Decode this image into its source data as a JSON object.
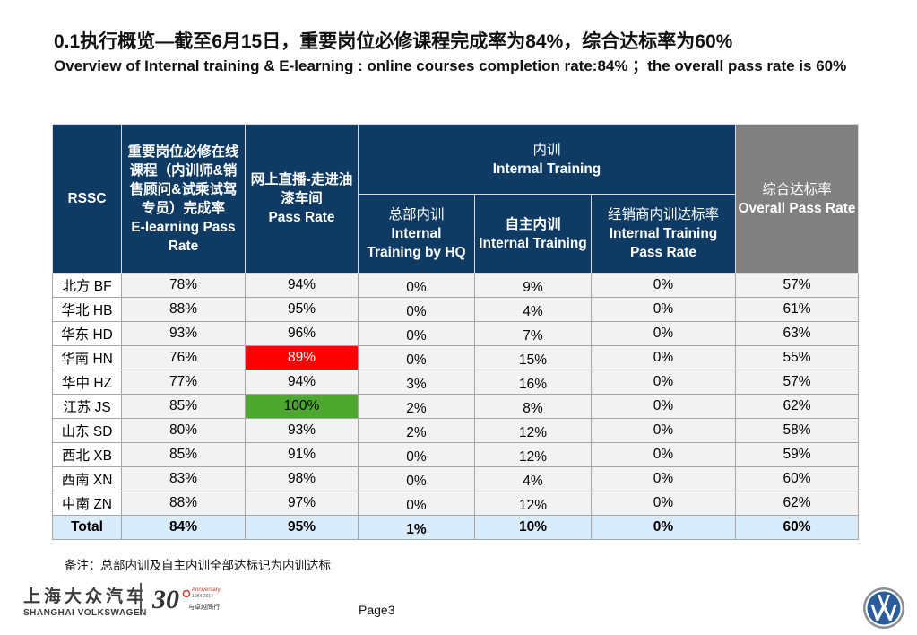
{
  "title": {
    "cn": "0.1执行概览—截至6月15日，重要岗位必修课程完成率为84%，综合达标率为60%",
    "en": "Overview of Internal training & E-learning : online courses completion rate:84% ；the overall pass rate is 60%"
  },
  "table": {
    "headers": {
      "rssc": "RSSC",
      "elearning_cn": "重要岗位必修在线课程（内训师&销售顾问&试乘试驾专员）完成率",
      "elearning_en": "E-learning Pass Rate",
      "live_cn": "网上直播-走进油漆车间",
      "live_en": "Pass Rate",
      "internal_cn": "内训",
      "internal_en": "Internal Training",
      "hq_cn": "总部内训",
      "hq_en": "Internal Training by HQ",
      "self_cn": "自主内训",
      "self_en": "Internal Training",
      "dealer_cn": "经销商内训达标率",
      "dealer_en": "Internal Training Pass Rate",
      "overall_cn": "综合达标率",
      "overall_en": "Overall Pass Rate"
    },
    "rows": [
      {
        "region": "北方 BF",
        "elearning": "78%",
        "live": "94%",
        "hq": "0%",
        "self": "9%",
        "dealer": "0%",
        "overall": "57%"
      },
      {
        "region": "华北 HB",
        "elearning": "88%",
        "live": "95%",
        "hq": "0%",
        "self": "4%",
        "dealer": "0%",
        "overall": "61%"
      },
      {
        "region": "华东 HD",
        "elearning": "93%",
        "live": "96%",
        "hq": "0%",
        "self": "7%",
        "dealer": "0%",
        "overall": "63%"
      },
      {
        "region": "华南 HN",
        "elearning": "76%",
        "live": "89%",
        "hq": "0%",
        "self": "15%",
        "dealer": "0%",
        "overall": "55%"
      },
      {
        "region": "华中 HZ",
        "elearning": "77%",
        "live": "94%",
        "hq": "3%",
        "self": "16%",
        "dealer": "0%",
        "overall": "57%"
      },
      {
        "region": "江苏 JS",
        "elearning": "85%",
        "live": "100%",
        "hq": "2%",
        "self": "8%",
        "dealer": "0%",
        "overall": "62%"
      },
      {
        "region": "山东 SD",
        "elearning": "80%",
        "live": "93%",
        "hq": "2%",
        "self": "12%",
        "dealer": "0%",
        "overall": "58%"
      },
      {
        "region": "西北 XB",
        "elearning": "85%",
        "live": "91%",
        "hq": "0%",
        "self": "12%",
        "dealer": "0%",
        "overall": "59%"
      },
      {
        "region": "西南 XN",
        "elearning": "83%",
        "live": "98%",
        "hq": "0%",
        "self": "4%",
        "dealer": "0%",
        "overall": "60%"
      },
      {
        "region": "中南 ZN",
        "elearning": "88%",
        "live": "97%",
        "hq": "0%",
        "self": "12%",
        "dealer": "0%",
        "overall": "62%"
      }
    ],
    "total": {
      "region": "Total",
      "elearning": "84%",
      "live": "95%",
      "hq": "1%",
      "self": "10%",
      "dealer": "0%",
      "overall": "60%"
    },
    "highlight_colors": {
      "low": "#ff0000",
      "high": "#4ea72e"
    }
  },
  "note": "备注：总部内训及自主内训全部达标记为内训达标",
  "footer": {
    "logo_cn": "上海大众汽车",
    "logo_en": "SHANGHAI VOLKSWAGEN",
    "anniversary_number": "30",
    "anniversary_text": "Anniversary",
    "anniversary_years": "1984-2014",
    "anniversary_cn": "与卓越同行",
    "page": "Page3"
  }
}
